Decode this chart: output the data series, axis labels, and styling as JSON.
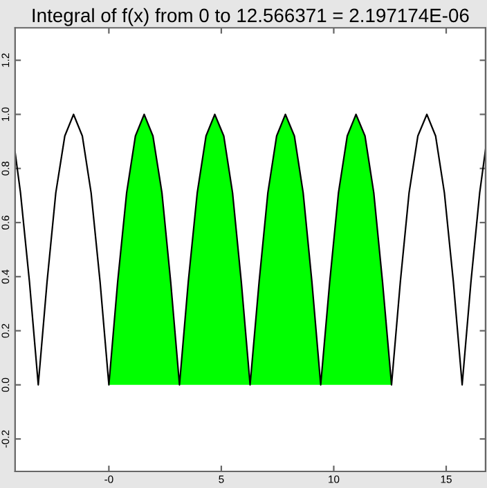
{
  "chart_data": {
    "type": "line",
    "title": "Integral of f(x) from 0 to 12.566371 = 2.197174E-06",
    "xlim": [
      -4.17,
      16.75
    ],
    "ylim": [
      -0.32,
      1.32
    ],
    "xticks": [
      {
        "value": 0,
        "label": "-0"
      },
      5,
      10,
      15
    ],
    "yticks": [
      -0.2,
      {
        "value": 0,
        "label": "0.0"
      },
      0.2,
      0.4,
      0.6,
      0.8,
      {
        "value": 1,
        "label": "1.0"
      },
      1.2
    ],
    "series": [
      {
        "type": "area",
        "color": "#00ff00",
        "x": [
          0,
          0.39,
          0.79,
          1.18,
          1.57,
          1.96,
          2.36,
          2.75,
          3.14,
          3.53,
          3.93,
          4.32,
          4.71,
          5.11,
          5.5,
          5.89,
          6.28,
          6.68,
          7.07,
          7.46,
          7.85,
          8.25,
          8.64,
          9.03,
          9.42,
          9.82,
          10.21,
          10.6,
          10.99,
          11.39,
          11.78,
          12.17,
          12.57
        ],
        "values": [
          0,
          0.38,
          0.71,
          0.92,
          1.0,
          0.92,
          0.71,
          0.38,
          0,
          0.38,
          0.71,
          0.92,
          1.0,
          0.92,
          0.71,
          0.38,
          0,
          0.38,
          0.71,
          0.92,
          1.0,
          0.92,
          0.71,
          0.38,
          0,
          0.38,
          0.71,
          0.92,
          1.0,
          0.92,
          0.71,
          0.38,
          0
        ]
      },
      {
        "color": "#000000",
        "x": [
          -4.17,
          -3.93,
          -3.53,
          -3.14,
          -2.75,
          -2.36,
          -1.96,
          -1.57,
          -1.18,
          -0.79,
          -0.39,
          0,
          0.39,
          0.79,
          1.18,
          1.57,
          1.96,
          2.36,
          2.75,
          3.14,
          3.53,
          3.93,
          4.32,
          4.71,
          5.11,
          5.5,
          5.89,
          6.28,
          6.68,
          7.07,
          7.46,
          7.85,
          8.25,
          8.64,
          9.03,
          9.42,
          9.82,
          10.21,
          10.6,
          10.99,
          11.39,
          11.78,
          12.17,
          12.57,
          12.96,
          13.35,
          13.74,
          14.14,
          14.53,
          14.92,
          15.32,
          15.71,
          16.1,
          16.49,
          16.75
        ],
        "values": [
          0.86,
          0.71,
          0.38,
          0,
          0.38,
          0.71,
          0.92,
          1.0,
          0.92,
          0.71,
          0.38,
          0,
          0.38,
          0.71,
          0.92,
          1.0,
          0.92,
          0.71,
          0.38,
          0,
          0.38,
          0.71,
          0.92,
          1.0,
          0.92,
          0.71,
          0.38,
          0,
          0.38,
          0.71,
          0.92,
          1.0,
          0.92,
          0.71,
          0.38,
          0,
          0.38,
          0.71,
          0.92,
          1.0,
          0.92,
          0.71,
          0.38,
          0,
          0.38,
          0.71,
          0.92,
          1.0,
          0.92,
          0.71,
          0.38,
          0,
          0.38,
          0.71,
          0.87
        ]
      }
    ]
  }
}
